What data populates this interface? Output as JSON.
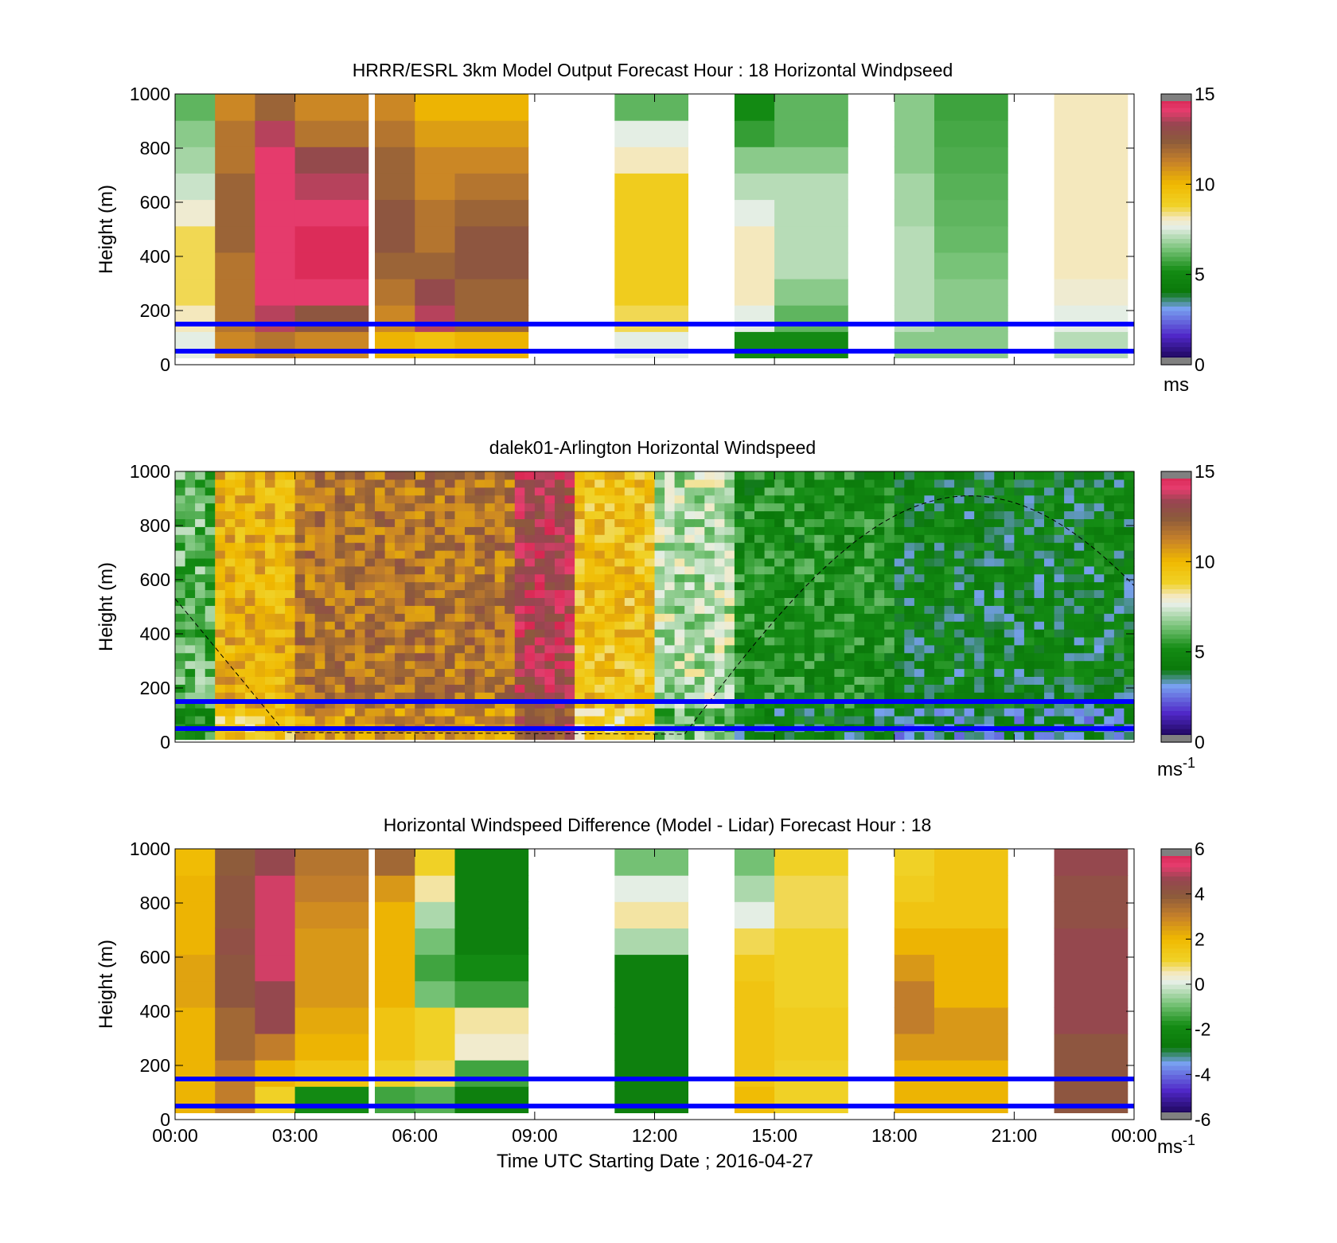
{
  "figure": {
    "xlabel": "Time UTC  Starting Date ; 2016-04-27",
    "x_ticks": [
      "00:00",
      "03:00",
      "06:00",
      "09:00",
      "12:00",
      "15:00",
      "18:00",
      "21:00",
      "00:00"
    ]
  },
  "chart_data": [
    {
      "type": "heatmap",
      "title": "HRRR/ESRL 3km Model Output   Forecast Hour : 18 Horizontal Windpseed",
      "ylabel": "Height (m)",
      "xlim_hours": [
        0,
        24
      ],
      "ylim": [
        0,
        1000
      ],
      "y_ticks": [
        "0",
        "200",
        "400",
        "600",
        "800",
        "1000"
      ],
      "colorbar": {
        "range": [
          0,
          15
        ],
        "ticks": [
          "0",
          "5",
          "10",
          "15"
        ],
        "unit": "ms"
      },
      "reference_lines_m": [
        50,
        150
      ],
      "columns_hours": [
        0,
        1,
        2,
        3,
        5,
        6,
        7,
        11,
        14,
        15,
        18,
        19,
        22
      ],
      "approx_profiles_ms": [
        [
          7.5,
          8,
          8.5,
          8.5,
          8.5,
          7.8,
          7.2,
          6.8,
          6.5,
          6
        ],
        [
          11,
          11.5,
          11.5,
          11.5,
          12,
          12,
          12,
          11.5,
          11.5,
          11
        ],
        [
          11.5,
          13.5,
          14,
          14,
          14,
          14,
          14,
          14,
          13.5,
          12
        ],
        [
          11,
          12.5,
          14,
          14.5,
          14.5,
          14,
          13.5,
          13,
          11.5,
          11
        ],
        [
          10,
          11,
          11.5,
          12,
          12.5,
          12.5,
          12,
          12,
          11.5,
          11
        ],
        [
          9.5,
          13.5,
          13,
          12,
          11.5,
          11.5,
          11,
          11,
          10.5,
          10
        ],
        [
          10,
          12,
          12,
          12.5,
          12.5,
          12,
          11.5,
          11,
          10.5,
          10
        ],
        [
          7.5,
          8.5,
          9,
          9,
          9,
          9,
          9,
          8,
          7.5,
          6
        ],
        [
          5,
          7.5,
          8,
          8,
          8,
          7.5,
          7,
          6.5,
          5.5,
          5
        ],
        [
          5,
          6,
          6.5,
          7,
          7,
          7,
          7,
          6.5,
          6,
          6
        ],
        [
          6.5,
          7,
          7,
          7,
          7,
          6.8,
          6.8,
          6.5,
          6.5,
          6.5
        ],
        [
          6.5,
          6.5,
          6.5,
          6.3,
          6.1,
          6,
          5.9,
          5.8,
          5.7,
          5.6
        ],
        [
          7,
          7.5,
          7.8,
          8,
          8,
          8,
          8,
          8,
          8,
          8
        ]
      ]
    },
    {
      "type": "heatmap",
      "title": "dalek01-Arlington  Horizontal Windspeed",
      "ylabel": "Height (m)",
      "xlim_hours": [
        0,
        24
      ],
      "ylim": [
        0,
        1000
      ],
      "y_ticks": [
        "0",
        "200",
        "400",
        "600",
        "800",
        "1000"
      ],
      "colorbar": {
        "range": [
          0,
          15
        ],
        "ticks": [
          "0",
          "5",
          "10",
          "15"
        ],
        "unit": "ms",
        "unit_superscript": "-1"
      },
      "reference_lines_m": [
        50,
        150
      ],
      "boundary_curve": "dashed",
      "approx_regime_ms": [
        {
          "hours": [
            0,
            1
          ],
          "speed": 6
        },
        {
          "hours": [
            1,
            3
          ],
          "speed": 10
        },
        {
          "hours": [
            3,
            8.5
          ],
          "speed": 11.5
        },
        {
          "hours": [
            8.5,
            10
          ],
          "speed": 13.5
        },
        {
          "hours": [
            10,
            12
          ],
          "speed": 9.5
        },
        {
          "hours": [
            12,
            14
          ],
          "speed": 7
        },
        {
          "hours": [
            14,
            18
          ],
          "speed": 5
        },
        {
          "hours": [
            18,
            24
          ],
          "speed": 4.2
        }
      ]
    },
    {
      "type": "heatmap",
      "title": "Horizontal Windspeed Difference (Model - Lidar) Forecast Hour : 18",
      "ylabel": "Height (m)",
      "xlim_hours": [
        0,
        24
      ],
      "ylim": [
        0,
        1000
      ],
      "y_ticks": [
        "0",
        "200",
        "400",
        "600",
        "800",
        "1000"
      ],
      "colorbar": {
        "range": [
          -6,
          6
        ],
        "ticks": [
          "-6",
          "-4",
          "-2",
          "0",
          "2",
          "4",
          "6"
        ],
        "unit": "ms",
        "unit_superscript": "-1"
      },
      "reference_lines_m": [
        50,
        150
      ],
      "columns_hours": [
        0,
        1,
        2,
        3,
        5,
        6,
        7,
        11,
        14,
        15,
        18,
        19,
        22
      ],
      "approx_profiles_ms": [
        [
          2,
          2,
          2,
          2,
          2.3,
          2.3,
          2,
          2,
          2,
          1.8
        ],
        [
          3,
          3,
          3.5,
          3.5,
          4,
          4,
          4.2,
          4,
          4,
          3.8
        ],
        [
          1,
          2,
          3,
          4.5,
          4.5,
          5,
          5,
          5,
          5,
          4.5
        ],
        [
          -2,
          1.5,
          2,
          2.2,
          2.5,
          2.5,
          2.5,
          2.7,
          3,
          3.2
        ],
        [
          -1.5,
          1,
          1.5,
          1.5,
          2,
          2,
          2,
          2,
          2.5,
          3.5
        ],
        [
          -1.3,
          0.8,
          1,
          1,
          -1,
          -1.5,
          -1,
          -0.5,
          0.5,
          1
        ],
        [
          -2.5,
          -1.5,
          0.3,
          0.5,
          -1.5,
          -2,
          -2.5,
          -2.5,
          -2.5,
          -2.5
        ],
        [
          -2.5,
          -2.5,
          -2.5,
          -2.5,
          -2.5,
          -2.5,
          -0.5,
          0.5,
          0,
          -1
        ],
        [
          1.8,
          1.5,
          1.5,
          1.5,
          1.5,
          1.3,
          0.8,
          0,
          -0.5,
          -1
        ],
        [
          1,
          1,
          1.2,
          1.2,
          1,
          1,
          1,
          0.8,
          0.8,
          1
        ],
        [
          2,
          2,
          2.5,
          3,
          3,
          2.5,
          2,
          1.5,
          1.2,
          1
        ],
        [
          2,
          2,
          2.5,
          2.5,
          2,
          2,
          2,
          1.5,
          1.5,
          1.5
        ],
        [
          4,
          4,
          4,
          4.5,
          4.5,
          4.5,
          4.5,
          4.2,
          4.2,
          4.5
        ]
      ]
    }
  ]
}
